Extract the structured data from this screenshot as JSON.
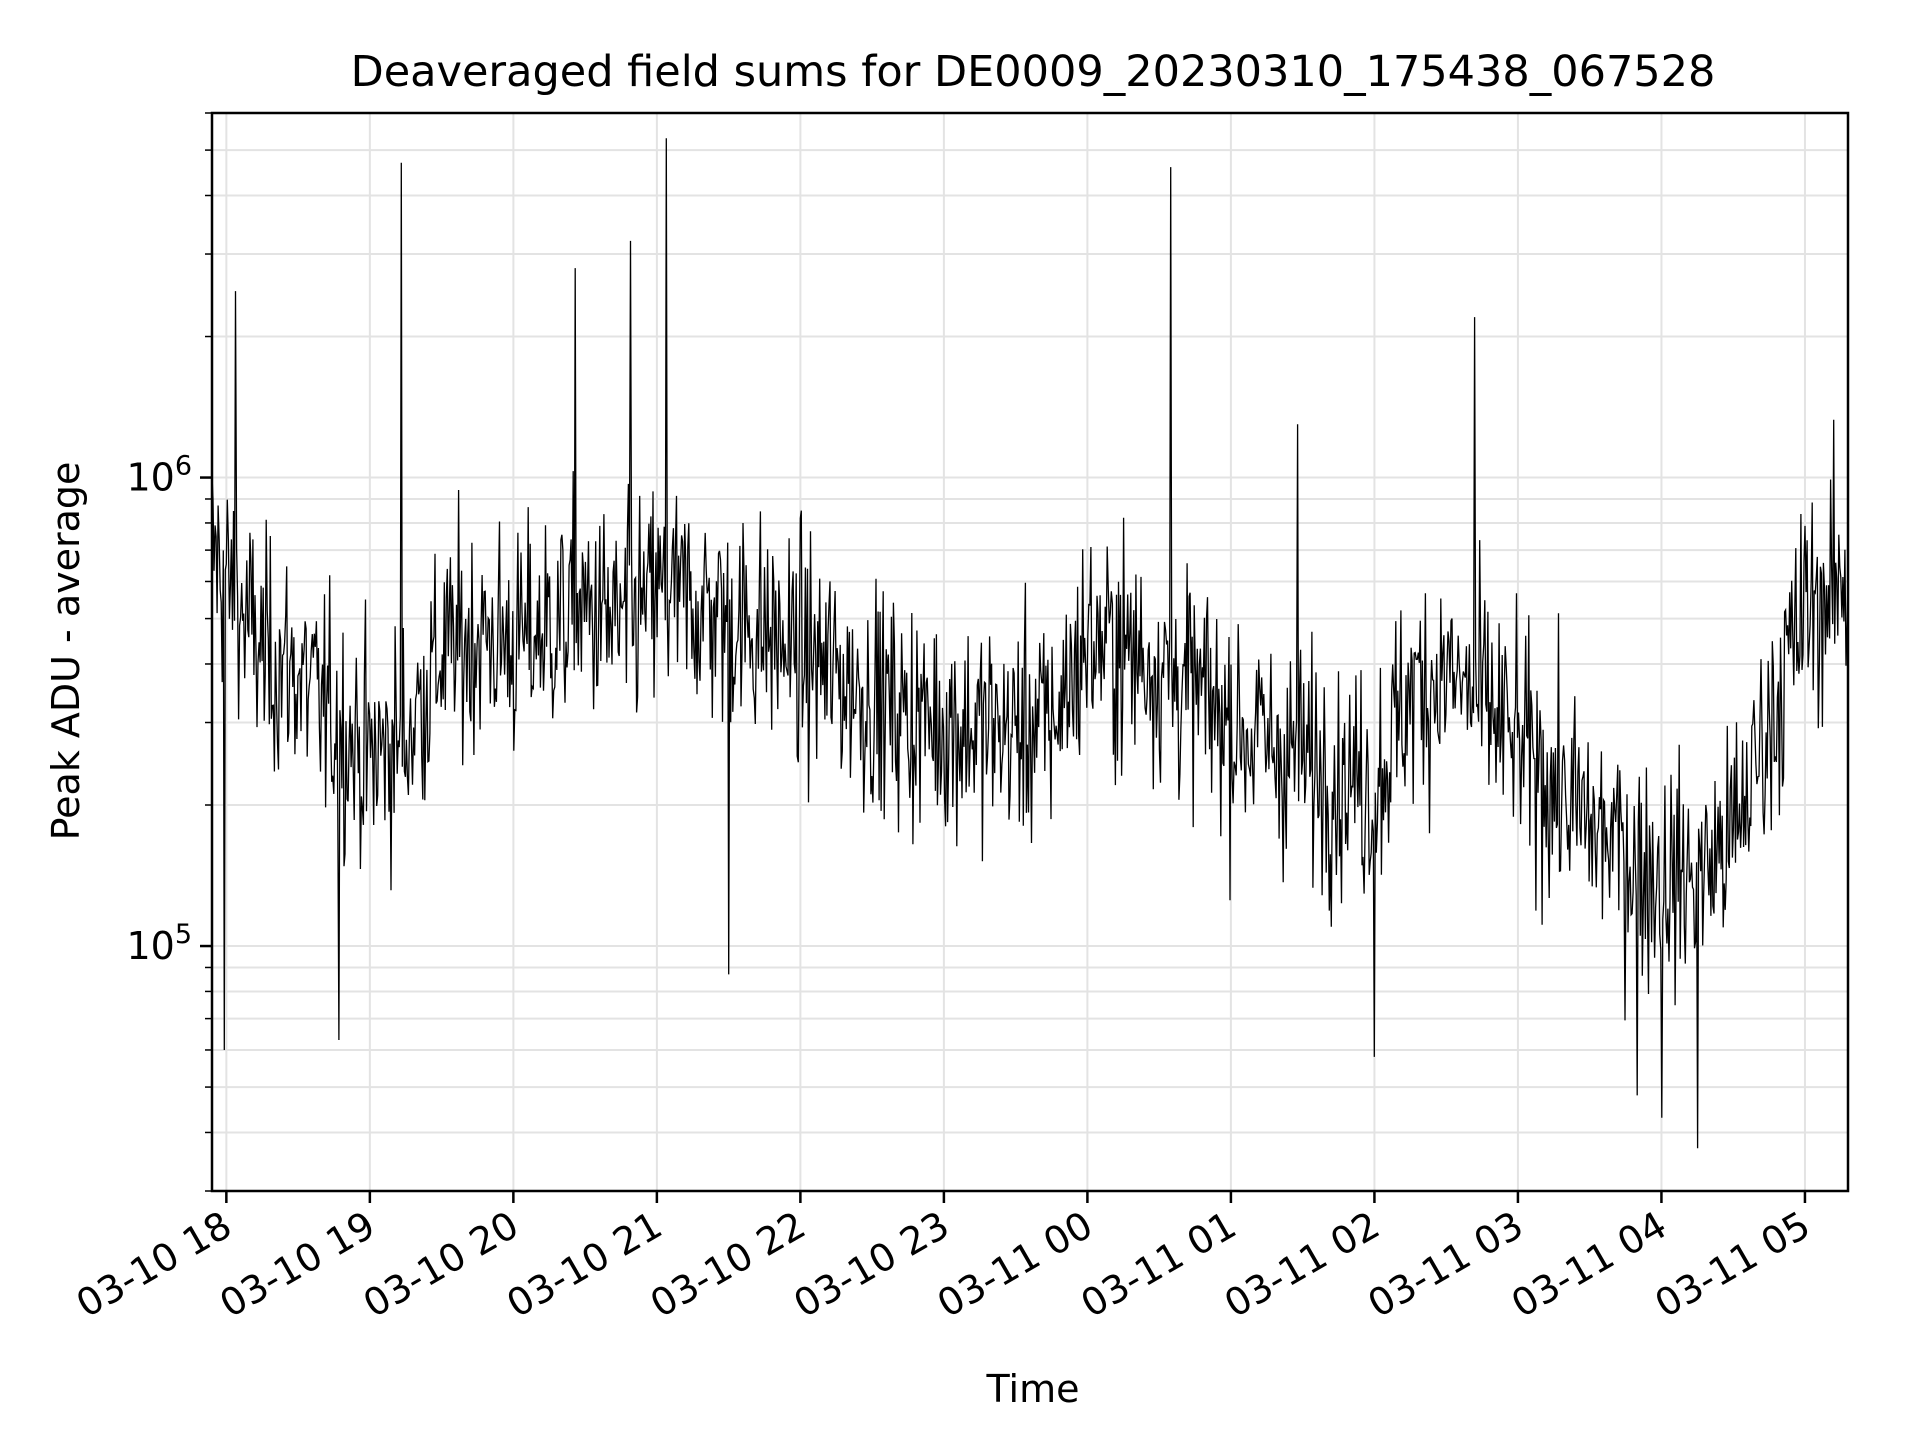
{
  "chart_data": {
    "type": "line",
    "title": "Deaveraged field sums for DE0009_20230310_175438_067528",
    "xlabel": "Time",
    "ylabel": "Peak ADU - average",
    "y_scale": "log",
    "ylim": [
      30000,
      6000000
    ],
    "xlim": [
      "2023-03-10 17:54",
      "2023-03-11 05:18"
    ],
    "grid": true,
    "x_ticks": [
      {
        "time": "2023-03-10 18:00",
        "label": "03-10 18"
      },
      {
        "time": "2023-03-10 19:00",
        "label": "03-10 19"
      },
      {
        "time": "2023-03-10 20:00",
        "label": "03-10 20"
      },
      {
        "time": "2023-03-10 21:00",
        "label": "03-10 21"
      },
      {
        "time": "2023-03-10 22:00",
        "label": "03-10 22"
      },
      {
        "time": "2023-03-10 23:00",
        "label": "03-10 23"
      },
      {
        "time": "2023-03-11 00:00",
        "label": "03-11 00"
      },
      {
        "time": "2023-03-11 01:00",
        "label": "03-11 01"
      },
      {
        "time": "2023-03-11 02:00",
        "label": "03-11 02"
      },
      {
        "time": "2023-03-11 03:00",
        "label": "03-11 03"
      },
      {
        "time": "2023-03-11 04:00",
        "label": "03-11 04"
      },
      {
        "time": "2023-03-11 05:00",
        "label": "03-11 05"
      }
    ],
    "y_ticks": [
      {
        "value": 100000,
        "base": "10",
        "exp": "5"
      },
      {
        "value": 1000000,
        "base": "10",
        "exp": "6"
      }
    ],
    "series": [
      {
        "color": "#000000",
        "x": [
          "2023-03-10 17:54",
          "2023-03-10 18:00",
          "2023-03-10 18:15",
          "2023-03-10 18:30",
          "2023-03-10 18:45",
          "2023-03-10 19:00",
          "2023-03-10 19:15",
          "2023-03-10 19:30",
          "2023-03-10 19:45",
          "2023-03-10 20:00",
          "2023-03-10 20:15",
          "2023-03-10 20:30",
          "2023-03-10 20:45",
          "2023-03-10 21:00",
          "2023-03-10 21:15",
          "2023-03-10 21:30",
          "2023-03-10 21:45",
          "2023-03-10 22:00",
          "2023-03-10 22:15",
          "2023-03-10 22:30",
          "2023-03-10 22:45",
          "2023-03-10 23:00",
          "2023-03-10 23:15",
          "2023-03-10 23:30",
          "2023-03-10 23:45",
          "2023-03-11 00:00",
          "2023-03-11 00:15",
          "2023-03-11 00:30",
          "2023-03-11 00:45",
          "2023-03-11 01:00",
          "2023-03-11 01:15",
          "2023-03-11 01:30",
          "2023-03-11 01:45",
          "2023-03-11 02:00",
          "2023-03-11 02:15",
          "2023-03-11 02:30",
          "2023-03-11 02:45",
          "2023-03-11 03:00",
          "2023-03-11 03:15",
          "2023-03-11 03:30",
          "2023-03-11 03:45",
          "2023-03-11 04:00",
          "2023-03-11 04:15",
          "2023-03-11 04:30",
          "2023-03-11 04:45",
          "2023-03-11 05:00",
          "2023-03-11 05:18"
        ],
        "y": [
          700000,
          600000,
          420000,
          380000,
          300000,
          250000,
          280000,
          420000,
          460000,
          440000,
          480000,
          520000,
          480000,
          560000,
          540000,
          500000,
          470000,
          420000,
          380000,
          340000,
          310000,
          300000,
          290000,
          290000,
          300000,
          450000,
          430000,
          400000,
          350000,
          300000,
          270000,
          250000,
          230000,
          220000,
          350000,
          380000,
          330000,
          270000,
          220000,
          180000,
          160000,
          140000,
          140000,
          170000,
          300000,
          520000,
          600000
        ]
      }
    ],
    "spikes": [
      {
        "x": "2023-03-10 19:13",
        "y": 4700000
      },
      {
        "x": "2023-03-10 21:04",
        "y": 5300000
      },
      {
        "x": "2023-03-11 00:35",
        "y": 4600000
      },
      {
        "x": "2023-03-10 20:49",
        "y": 3200000
      },
      {
        "x": "2023-03-10 18:04",
        "y": 2500000
      },
      {
        "x": "2023-03-10 20:26",
        "y": 2800000
      },
      {
        "x": "2023-03-11 02:42",
        "y": 2200000
      },
      {
        "x": "2023-03-11 01:28",
        "y": 1300000
      },
      {
        "x": "2023-03-10 17:59",
        "y": 60000
      },
      {
        "x": "2023-03-10 18:47",
        "y": 63000
      },
      {
        "x": "2023-03-11 03:50",
        "y": 48000
      },
      {
        "x": "2023-03-11 04:00",
        "y": 43000
      },
      {
        "x": "2023-03-11 04:15",
        "y": 37000
      },
      {
        "x": "2023-03-11 02:00",
        "y": 58000
      },
      {
        "x": "2023-03-10 21:30",
        "y": 87000
      }
    ]
  }
}
